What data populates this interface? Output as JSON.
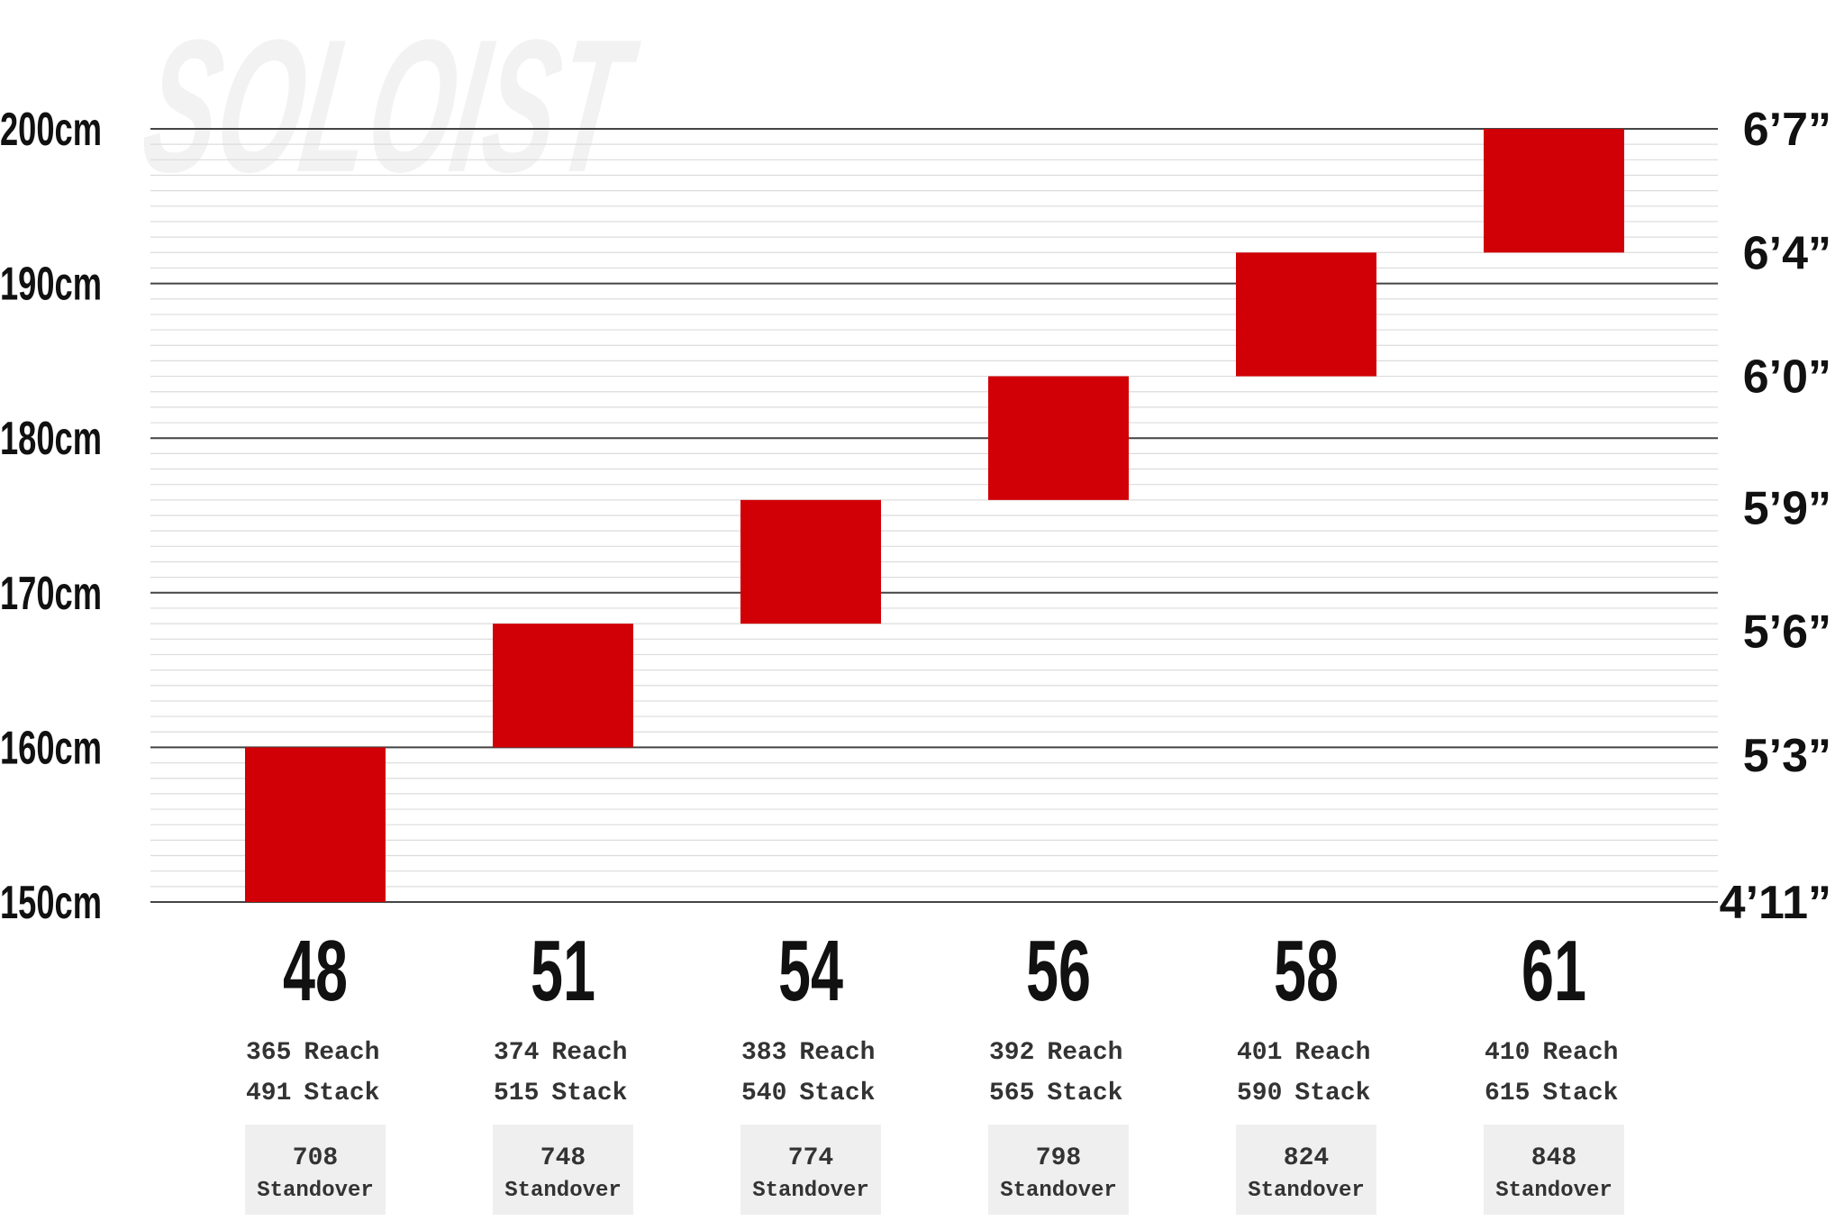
{
  "watermark": "SOLOIST",
  "colors": {
    "bar": "#d10006",
    "major_grid": "#444444",
    "minor_grid": "#dcdcdc",
    "badge_bg": "#efefef",
    "watermark": "#f2f2f2",
    "text": "#111111",
    "secondary_text": "#333333"
  },
  "chart_data": {
    "type": "bar",
    "title": "",
    "ylim": [
      150,
      200
    ],
    "y_unit": "cm",
    "left_ticks": [
      {
        "value": 200,
        "label": "200cm"
      },
      {
        "value": 190,
        "label": "190cm"
      },
      {
        "value": 180,
        "label": "180cm"
      },
      {
        "value": 170,
        "label": "170cm"
      },
      {
        "value": 160,
        "label": "160cm"
      },
      {
        "value": 150,
        "label": "150cm"
      }
    ],
    "right_ticks": [
      {
        "value": 200,
        "label": "6’7”"
      },
      {
        "value": 192,
        "label": "6’4”"
      },
      {
        "value": 184,
        "label": "6’0”"
      },
      {
        "value": 175.5,
        "label": "5’9”"
      },
      {
        "value": 167.5,
        "label": "5’6”"
      },
      {
        "value": 159.5,
        "label": "5’3”"
      },
      {
        "value": 150,
        "label": "4’11”"
      }
    ],
    "minor_grid_step": 1,
    "sizes": [
      {
        "size": "48",
        "height_min": 150,
        "height_max": 160,
        "reach": "365",
        "stack": "491",
        "standover": "708"
      },
      {
        "size": "51",
        "height_min": 160,
        "height_max": 168,
        "reach": "374",
        "stack": "515",
        "standover": "748"
      },
      {
        "size": "54",
        "height_min": 168,
        "height_max": 176,
        "reach": "383",
        "stack": "540",
        "standover": "774"
      },
      {
        "size": "56",
        "height_min": 176,
        "height_max": 184,
        "reach": "392",
        "stack": "565",
        "standover": "798"
      },
      {
        "size": "58",
        "height_min": 184,
        "height_max": 192,
        "reach": "401",
        "stack": "590",
        "standover": "824"
      },
      {
        "size": "61",
        "height_min": 192,
        "height_max": 200,
        "reach": "410",
        "stack": "615",
        "standover": "848"
      }
    ],
    "labels": {
      "reach": "Reach",
      "stack": "Stack",
      "standover": "Standover"
    }
  }
}
